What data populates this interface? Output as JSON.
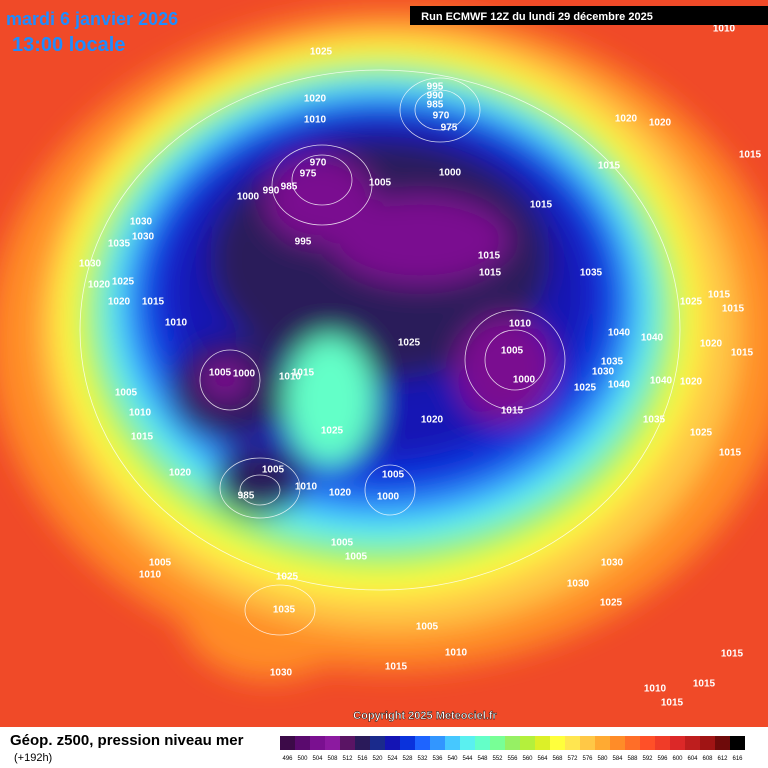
{
  "header": {
    "date": "mardi 6 janvier 2026",
    "time": "13:00 locale",
    "run": "Run ECMWF 12Z du lundi 29 décembre 2025"
  },
  "footer": {
    "title": "Géop. z500, pression niveau mer",
    "lead": "(+192h)",
    "copyright": "Copyright 2025 Meteociel.fr"
  },
  "legend": {
    "levels": [
      496,
      500,
      504,
      508,
      512,
      516,
      520,
      524,
      528,
      532,
      536,
      540,
      544,
      548,
      552,
      556,
      560,
      564,
      568,
      572,
      576,
      580,
      584,
      588,
      592,
      596,
      600,
      604,
      608,
      612,
      616
    ],
    "colors": [
      "#3c0a48",
      "#5a0a6e",
      "#7a1090",
      "#8c1aa0",
      "#5a1464",
      "#2a1a5a",
      "#1a2a8c",
      "#1414b4",
      "#0a32dc",
      "#1e64ff",
      "#3296ff",
      "#46c8ff",
      "#5af0f0",
      "#64ffc8",
      "#78ff96",
      "#96f064",
      "#b4f03c",
      "#dcf028",
      "#ffff3c",
      "#ffe650",
      "#ffc846",
      "#ffaa32",
      "#ff8c28",
      "#ff6e28",
      "#ff5028",
      "#f03c28",
      "#dc2828",
      "#be1e1e",
      "#a01414",
      "#6e0a0a",
      "#000000"
    ]
  },
  "isobar_labels": [
    "1025",
    "1020",
    "1010",
    "995",
    "990",
    "985",
    "970",
    "975",
    "970",
    "975",
    "985",
    "990",
    "1000",
    "1005",
    "1000",
    "1015",
    "1020",
    "1020",
    "1015",
    "1015",
    "1010",
    "1030",
    "1030",
    "1035",
    "1030",
    "1025",
    "1020",
    "1020",
    "1015",
    "1010",
    "995",
    "1015",
    "1015",
    "1035",
    "1025",
    "1015",
    "1015",
    "1010",
    "1005",
    "1000",
    "1025",
    "1040",
    "1040",
    "1020",
    "1015",
    "1035",
    "1030",
    "1040",
    "1040",
    "1020",
    "1025",
    "1005",
    "1000",
    "1010",
    "1015",
    "1005",
    "1010",
    "1015",
    "1015",
    "1020",
    "1025",
    "1035",
    "1025",
    "1015",
    "1020",
    "1005",
    "1005",
    "1000",
    "1010",
    "1020",
    "985",
    "1005",
    "1005",
    "1005",
    "1010",
    "1025",
    "1030",
    "1030",
    "1025",
    "1035",
    "1005",
    "1010",
    "1015",
    "1030",
    "1015",
    "1010",
    "1015",
    "1015"
  ]
}
